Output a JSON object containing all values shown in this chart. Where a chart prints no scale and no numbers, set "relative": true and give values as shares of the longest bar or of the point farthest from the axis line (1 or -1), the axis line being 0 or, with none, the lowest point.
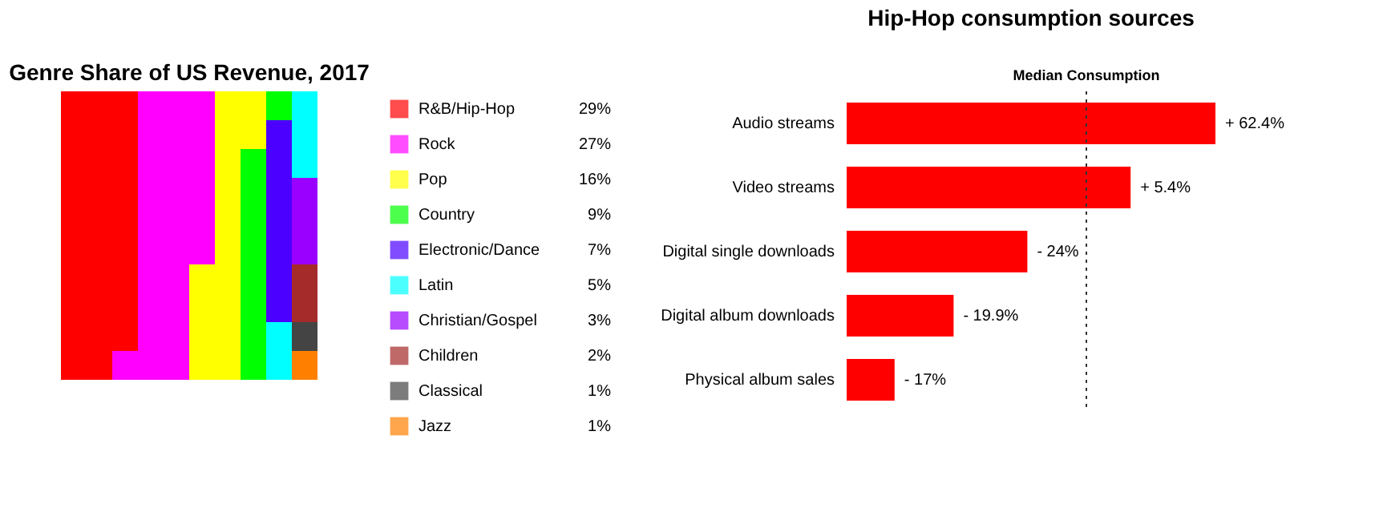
{
  "chart_data": [
    {
      "type": "other",
      "title": "Genre Share of US Revenue, 2017",
      "categories": [
        "R&B/Hip-Hop",
        "Rock",
        "Pop",
        "Country",
        "Electronic/Dance",
        "Latin",
        "Christian/Gospel",
        "Children",
        "Classical",
        "Jazz"
      ],
      "values": [
        29,
        27,
        16,
        9,
        7,
        5,
        3,
        2,
        1,
        1
      ],
      "value_labels": [
        "29%",
        "27%",
        "16%",
        "9%",
        "7%",
        "5%",
        "3%",
        "2%",
        "1%",
        "1%"
      ],
      "colors": [
        "#ff0000",
        "#ff00ff",
        "#ffff00",
        "#00ff00",
        "#4b00ff",
        "#00ffff",
        "#9900ff",
        "#a52a2a",
        "#444444",
        "#ff8000"
      ]
    },
    {
      "type": "bar",
      "orientation": "horizontal",
      "relative": true,
      "title": "Hip-Hop consumption sources",
      "categories": [
        "Audio streams",
        "Video streams",
        "Digital single downloads",
        "Digital album downloads",
        "Physical album sales"
      ],
      "values": [
        1,
        0.77,
        0.49,
        0.29,
        0.13
      ],
      "color": "#ff0000",
      "annotations": [
        {
          "text": "+ 62.4%",
          "x": 1,
          "y": "Audio streams"
        },
        {
          "text": "+ 5.4%",
          "x": 0.77,
          "y": "Video streams"
        },
        {
          "text": "- 24%",
          "x": 0.49,
          "y": "Digital single downloads"
        },
        {
          "text": "- 19.9%",
          "x": 0.29,
          "y": "Digital album downloads"
        },
        {
          "text": "- 17%",
          "x": 0.13,
          "y": "Physical album sales"
        }
      ],
      "ref_lines": [
        {
          "axis": "x",
          "value": 0.65,
          "label": "Median Consumption",
          "line_style": "dotted",
          "color": "#333333"
        }
      ]
    }
  ]
}
